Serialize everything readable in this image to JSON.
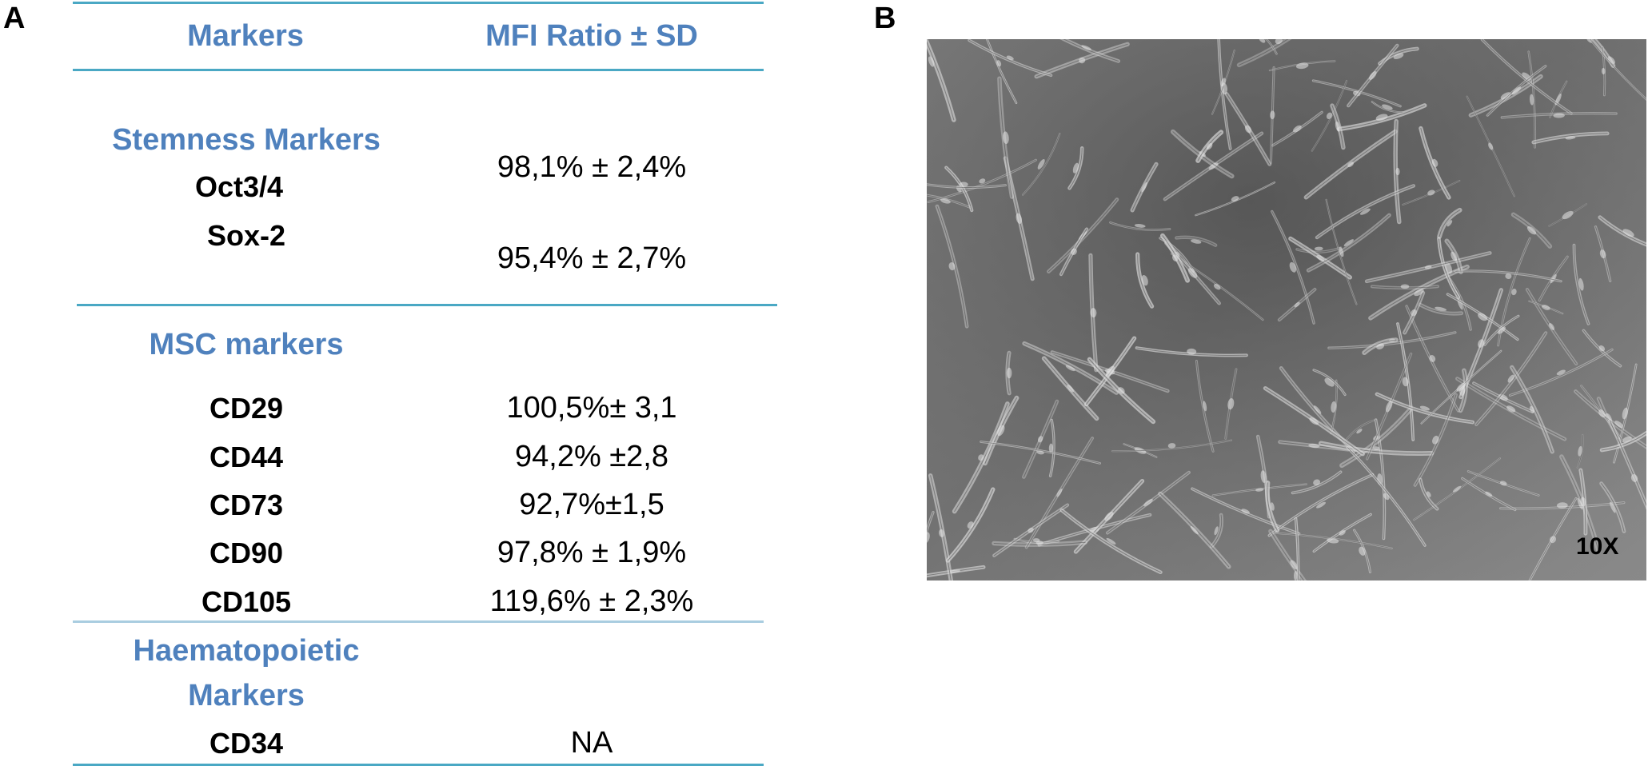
{
  "panel_a": {
    "label": "A",
    "header": {
      "markers": "Markers",
      "value": "MFI Ratio ± SD"
    },
    "sections": [
      {
        "title": "Stemness Markers",
        "rows": [
          {
            "marker": "Oct3/4",
            "value": "98,1% ± 2,4%"
          },
          {
            "marker": "Sox-2",
            "value": "95,4% ± 2,7%"
          }
        ]
      },
      {
        "title": "MSC markers",
        "rows": [
          {
            "marker": "CD29",
            "value": "100,5%± 3,1"
          },
          {
            "marker": "CD44",
            "value": "94,2% ±2,8"
          },
          {
            "marker": "CD73",
            "value": "92,7%±1,5"
          },
          {
            "marker": "CD90",
            "value": "97,8% ± 1,9%"
          },
          {
            "marker": "CD105",
            "value": "119,6% ± 2,3%"
          }
        ]
      },
      {
        "title_line1": "Haematopoietic",
        "title_line2": "Markers",
        "rows": [
          {
            "marker": "CD34",
            "value": "NA"
          }
        ]
      }
    ],
    "line_color": "#4aa8c4",
    "title_color": "#4f81bd"
  },
  "panel_b": {
    "label": "B",
    "magnification": "10X",
    "image_description_icon": "cell-micrograph-image"
  }
}
